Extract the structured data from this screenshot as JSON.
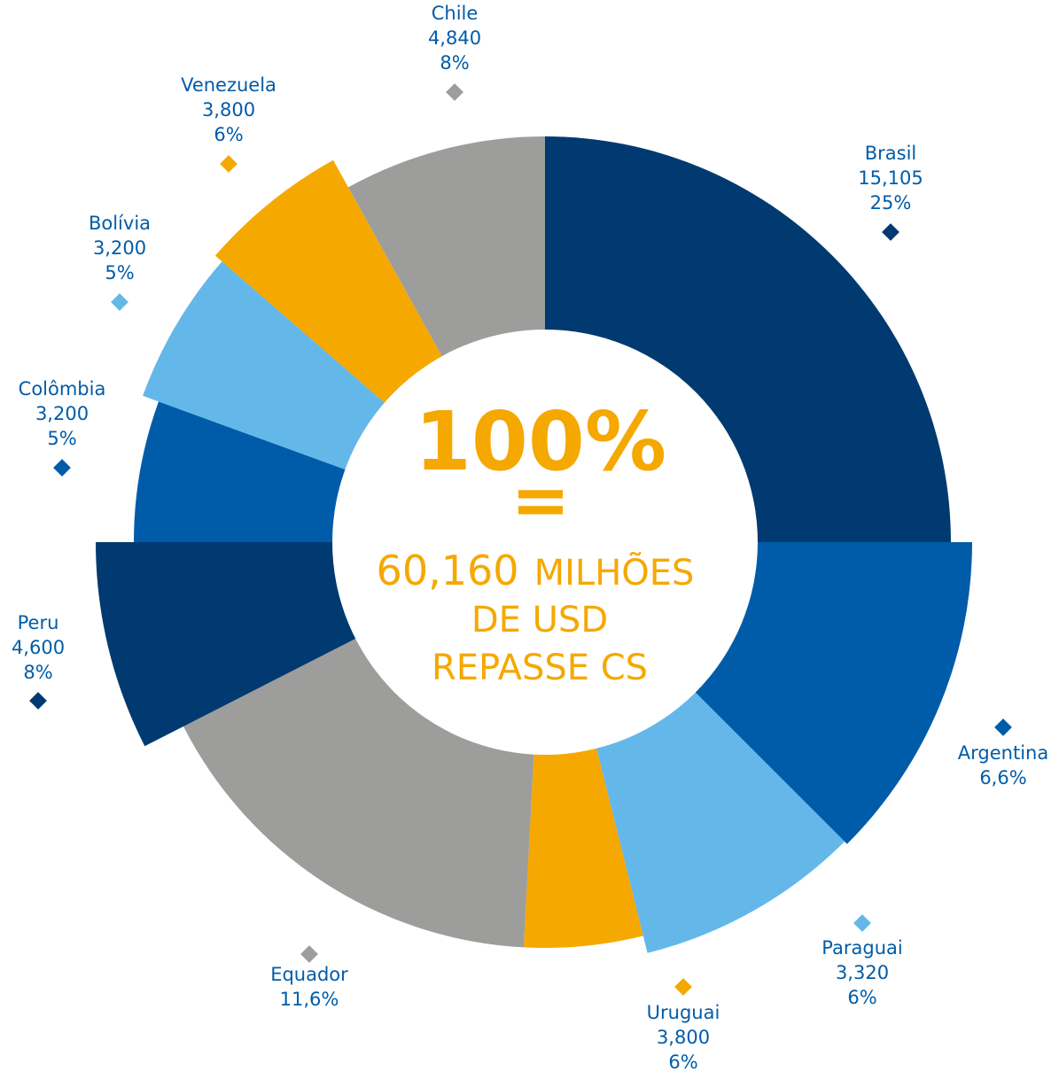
{
  "chart_data": {
    "type": "pie",
    "center": {
      "percent": "100%",
      "equals": "=",
      "amount": "60,160",
      "unit_1": "MILHÕES",
      "unit_2": "DE USD",
      "unit_3": "REPASSE CS"
    },
    "slices": [
      {
        "name": "Brasil",
        "value_text": "15,105",
        "percent_text": "25%",
        "value": 15105,
        "percent": 25,
        "color": "#003a70"
      },
      {
        "name": "Argentina",
        "value_text": "",
        "percent_text": "6,6%",
        "percent": 6.6,
        "color": "#005ca9"
      },
      {
        "name": "Paraguai",
        "value_text": "3,320",
        "percent_text": "6%",
        "value": 3320,
        "percent": 6,
        "color": "#63b8e9"
      },
      {
        "name": "Uruguai",
        "value_text": "3,800",
        "percent_text": "6%",
        "value": 3800,
        "percent": 6,
        "color": "#f5a800"
      },
      {
        "name": "Equador",
        "value_text": "",
        "percent_text": "11,6%",
        "percent": 11.6,
        "color": "#9d9d9c"
      },
      {
        "name": "Peru",
        "value_text": "4,600",
        "percent_text": "8%",
        "value": 4600,
        "percent": 8,
        "color": "#003a70"
      },
      {
        "name": "Colômbia",
        "value_text": "3,200",
        "percent_text": "5%",
        "value": 3200,
        "percent": 5,
        "color": "#005ca9"
      },
      {
        "name": "Bolívia",
        "value_text": "3,200",
        "percent_text": "5%",
        "value": 3200,
        "percent": 5,
        "color": "#63b8e9"
      },
      {
        "name": "Venezuela",
        "value_text": "3,800",
        "percent_text": "6%",
        "value": 3800,
        "percent": 6,
        "color": "#f5a800"
      },
      {
        "name": "Chile",
        "value_text": "4,840",
        "percent_text": "8%",
        "value": 4840,
        "percent": 8,
        "color": "#9d9d9c"
      }
    ],
    "colors": {
      "label_text": "#005ca9",
      "center_text": "#f5a800",
      "hole": "#ffffff"
    }
  }
}
